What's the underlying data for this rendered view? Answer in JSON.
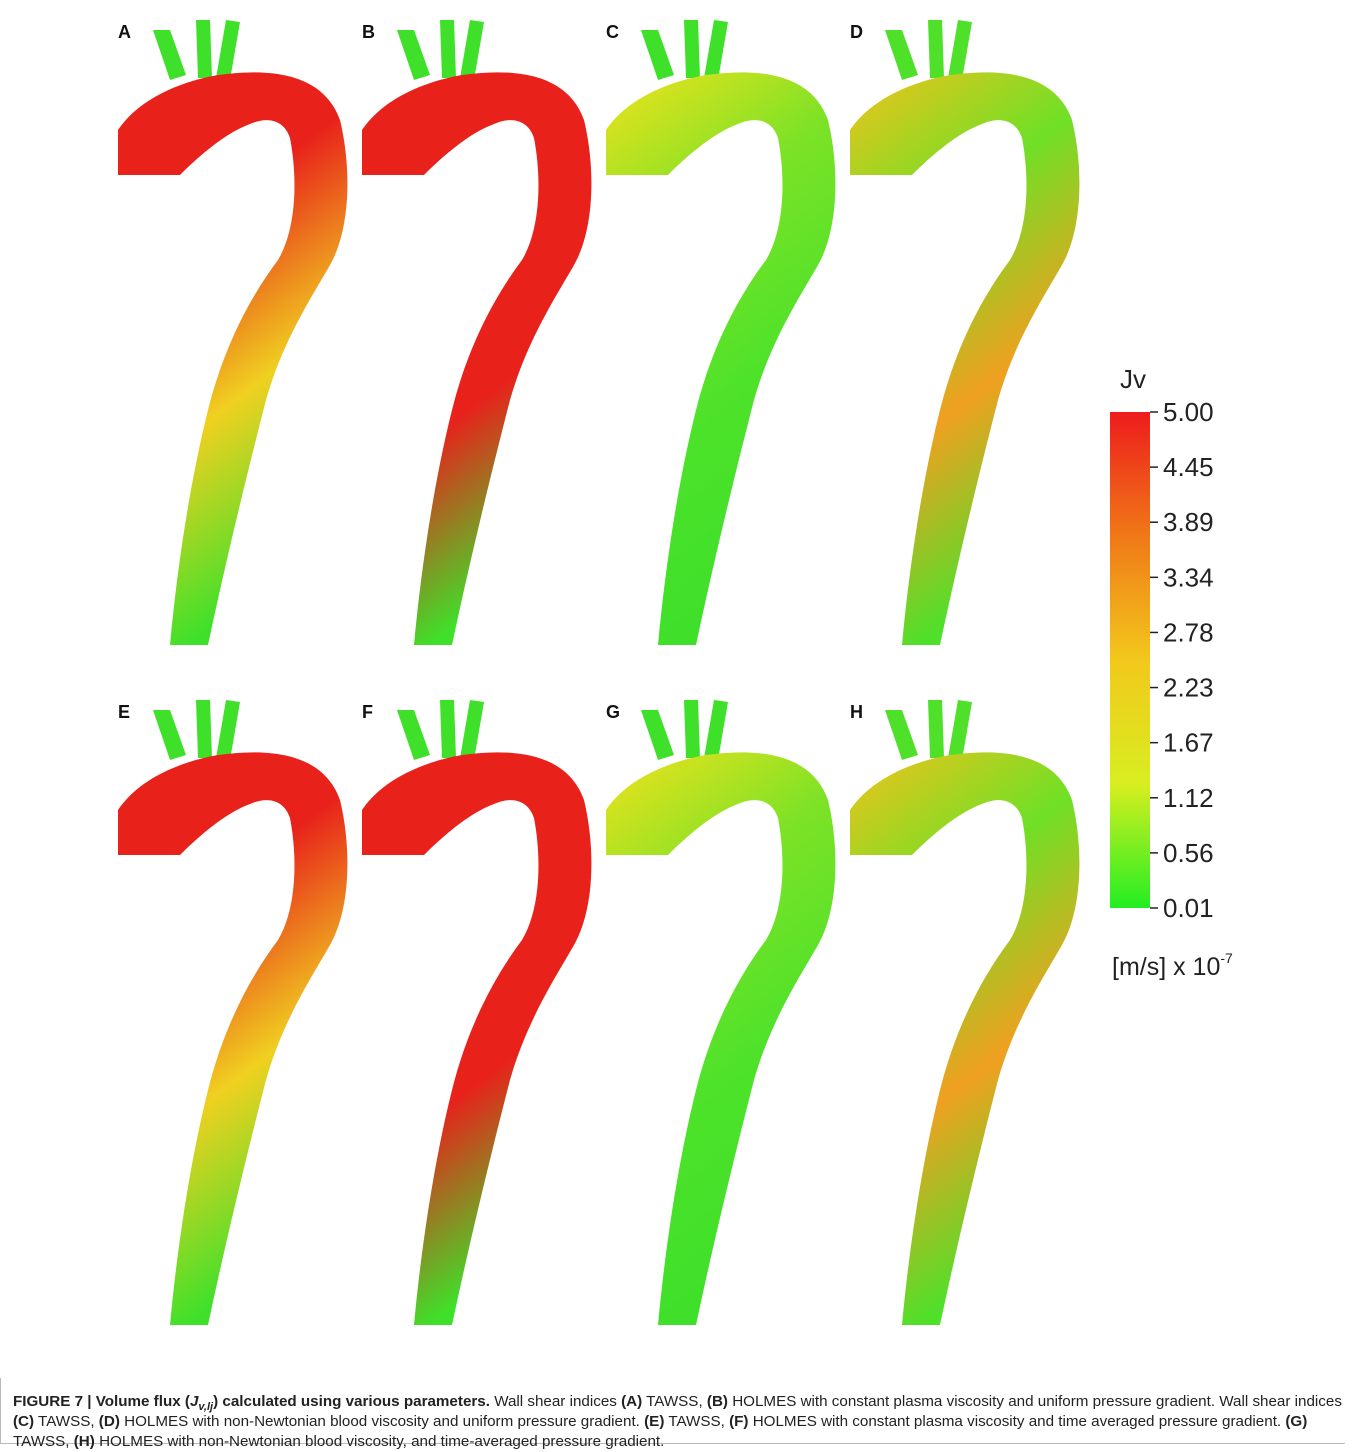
{
  "panels": [
    {
      "label": "A",
      "palette": [
        "#e8211b",
        "#e8211b",
        "#f0d020",
        "#3fe02a"
      ]
    },
    {
      "label": "B",
      "palette": [
        "#e8211b",
        "#e8211b",
        "#e8211b",
        "#3fe02a"
      ]
    },
    {
      "label": "C",
      "palette": [
        "#f2e21c",
        "#7ee226",
        "#4ee22a",
        "#3fe02a"
      ]
    },
    {
      "label": "D",
      "palette": [
        "#f2c21c",
        "#6fe026",
        "#f0a020",
        "#4fe02a"
      ]
    },
    {
      "label": "E",
      "palette": [
        "#e8211b",
        "#e8211b",
        "#f0d020",
        "#3fe02a"
      ]
    },
    {
      "label": "F",
      "palette": [
        "#e8211b",
        "#e8211b",
        "#e8211b",
        "#3fe02a"
      ]
    },
    {
      "label": "G",
      "palette": [
        "#f2e21c",
        "#7ee226",
        "#4ee22a",
        "#3fe02a"
      ]
    },
    {
      "label": "H",
      "palette": [
        "#f2c21c",
        "#6fe026",
        "#f0a020",
        "#4fe02a"
      ]
    }
  ],
  "colorbar": {
    "title": "Jv",
    "ticks": [
      "5.00",
      "4.45",
      "3.89",
      "3.34",
      "2.78",
      "2.23",
      "1.67",
      "1.12",
      "0.56",
      "0.01"
    ],
    "colors": [
      "#ee1c1c",
      "#f07818",
      "#f2c81c",
      "#d8ee20",
      "#22ee22"
    ],
    "unit": "[m/s] x 10",
    "unit_exponent": "-7"
  },
  "caption": [
    {
      "text": "FIGURE 7 | Volume flux (",
      "bold": true
    },
    {
      "text": "J",
      "bold": true,
      "italic": true
    },
    {
      "text": "v,lj",
      "bold": true,
      "italic": true,
      "sub": true
    },
    {
      "text": ") calculated using various parameters.",
      "bold": true
    },
    {
      "text": " Wall shear indices "
    },
    {
      "text": "(A)",
      "bold": true
    },
    {
      "text": " TAWSS, "
    },
    {
      "text": "(B)",
      "bold": true
    },
    {
      "text": " HOLMES with constant plasma viscosity and uniform pressure gradient. Wall shear indices "
    },
    {
      "text": "(C)",
      "bold": true
    },
    {
      "text": " TAWSS, "
    },
    {
      "text": "(D)",
      "bold": true
    },
    {
      "text": " HOLMES with non-Newtonian blood viscosity and uniform pressure gradient. "
    },
    {
      "text": "(E)",
      "bold": true
    },
    {
      "text": " TAWSS, "
    },
    {
      "text": "(F)",
      "bold": true
    },
    {
      "text": " HOLMES with constant plasma viscosity and time averaged pressure gradient. "
    },
    {
      "text": "(G)",
      "bold": true
    },
    {
      "text": " TAWSS, "
    },
    {
      "text": "(H)",
      "bold": true
    },
    {
      "text": " HOLMES with non-Newtonian blood viscosity, and time-averaged pressure gradient."
    }
  ]
}
